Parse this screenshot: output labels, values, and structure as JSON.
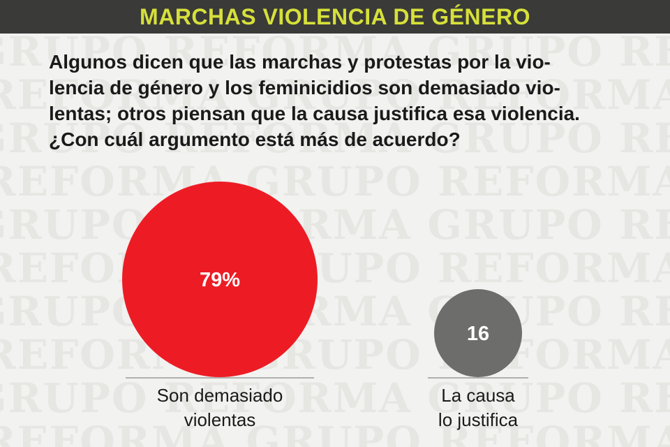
{
  "header": {
    "title": "MARCHAS VIOLENCIA DE GÉNERO"
  },
  "question": {
    "lines": [
      "Algunos dicen que las marchas y protestas por la vio-",
      "lencia de género y los feminicidios son demasiado vio-",
      "lentas; otros piensan que la causa justifica esa violencia.",
      "¿Con cuál argumento está más de acuerdo?"
    ]
  },
  "watermark": {
    "text": "GRUPO REFORMA"
  },
  "chart_data": {
    "type": "bubble",
    "title": "",
    "xlabel": "",
    "ylabel": "",
    "categories": [
      "Son demasiado violentas",
      "La causa lo justifica"
    ],
    "values": [
      79,
      16
    ],
    "value_labels": [
      "79%",
      "16"
    ],
    "category_label_lines": [
      [
        "Son demasiado",
        "violentas"
      ],
      [
        "La causa",
        "lo justifica"
      ]
    ],
    "colors": [
      "#ed1c24",
      "#6d6e6c"
    ]
  },
  "colors": {
    "header_bg": "#3a3a38",
    "header_text": "#d6e03a",
    "background": "#f2f2f0",
    "baseline": "#9a9a98"
  }
}
